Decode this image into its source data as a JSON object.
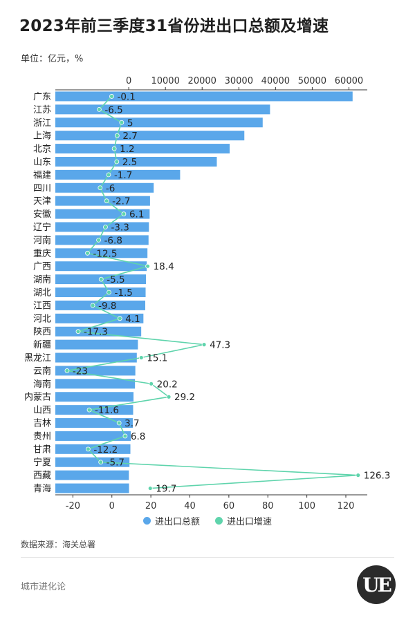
{
  "title": "2023年前三季度31省份进出口总额及增速",
  "unit": "单位：亿元，%",
  "source": "数据来源：海关总署",
  "brand": "城市进化论",
  "logo_text": "UE",
  "colors": {
    "bar": "#5aa7ea",
    "line": "#5fd4ac",
    "axis": "#333333"
  },
  "chart_data": {
    "type": "bar+line",
    "orientation": "horizontal",
    "categories": [
      "广东",
      "江苏",
      "浙江",
      "上海",
      "北京",
      "山东",
      "福建",
      "四川",
      "天津",
      "安徽",
      "辽宁",
      "河南",
      "重庆",
      "广西",
      "湖南",
      "湖北",
      "江西",
      "河北",
      "陕西",
      "新疆",
      "黑龙江",
      "云南",
      "海南",
      "内蒙古",
      "山西",
      "吉林",
      "贵州",
      "甘肃",
      "宁夏",
      "西藏",
      "青海"
    ],
    "series": [
      {
        "name": "进出口总额",
        "type": "bar",
        "axis": "top",
        "values": [
          61000,
          38500,
          36500,
          31500,
          27500,
          24000,
          14000,
          6800,
          5800,
          5700,
          5500,
          5400,
          5100,
          4900,
          4700,
          4600,
          4500,
          4000,
          3400,
          2500,
          2200,
          1800,
          1700,
          1300,
          1200,
          1100,
          550,
          450,
          200,
          40,
          80
        ]
      },
      {
        "name": "进出口增速",
        "type": "line",
        "axis": "bottom",
        "values": [
          -0.1,
          -6.5,
          5,
          2.7,
          1.2,
          2.5,
          -1.7,
          -6,
          -2.7,
          6.1,
          -3.3,
          -6.8,
          -12.5,
          18.4,
          -5.5,
          -1.5,
          -9.8,
          4.1,
          -17.3,
          47.3,
          15.1,
          -23,
          20.2,
          29.2,
          -11.6,
          3.7,
          6.8,
          -12.2,
          -5.7,
          126.3,
          19.7
        ]
      }
    ],
    "top_axis": {
      "range": [
        -20000,
        65000
      ],
      "ticks": [
        0,
        10000,
        20000,
        30000,
        40000,
        50000,
        60000
      ]
    },
    "bottom_axis": {
      "range": [
        -29,
        131
      ],
      "ticks": [
        -20,
        0,
        20,
        40,
        60,
        80,
        100,
        120
      ]
    },
    "legend": {
      "position": "bottom-center",
      "items": [
        "进出口总额",
        "进出口增速"
      ]
    }
  }
}
